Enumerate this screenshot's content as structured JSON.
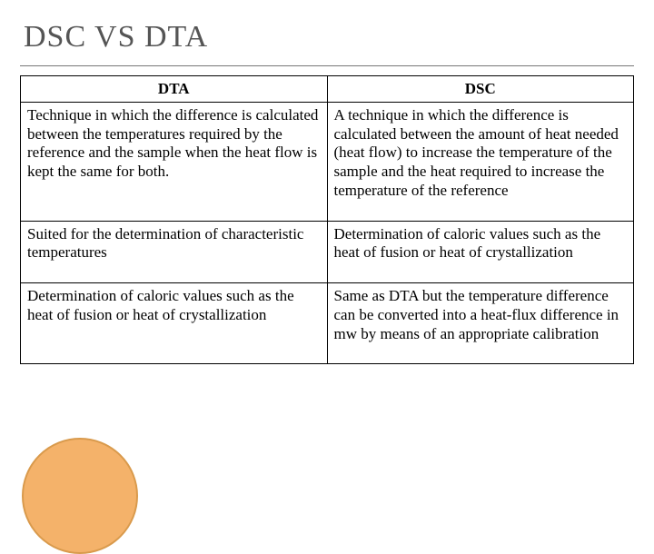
{
  "title": "DSC VS DTA",
  "table": {
    "columns": [
      "DTA",
      "DSC"
    ],
    "rows": [
      [
        "Technique in which the difference is calculated between the temperatures required by the reference and the sample when the heat flow is kept the same for both.",
        "A technique in which the difference is calculated between the amount of heat needed (heat flow) to increase the temperature of the sample and the heat required to increase the temperature of the reference"
      ],
      [
        "Suited for the determination of characteristic temperatures",
        "Determination of caloric values such as the heat of fusion or heat of crystallization"
      ],
      [
        "Determination of caloric values such as the heat of fusion or heat of crystallization",
        "Same as DTA  but the temperature difference can be converted into a heat-flux difference in mw by means of an appropriate calibration"
      ]
    ]
  },
  "style": {
    "title_color": "#555555",
    "title_fontsize": 34,
    "border_color": "#000000",
    "cell_fontsize": 17,
    "circle_color": "#f4b26a",
    "circle_border": "#d99a4c",
    "background": "#ffffff"
  }
}
